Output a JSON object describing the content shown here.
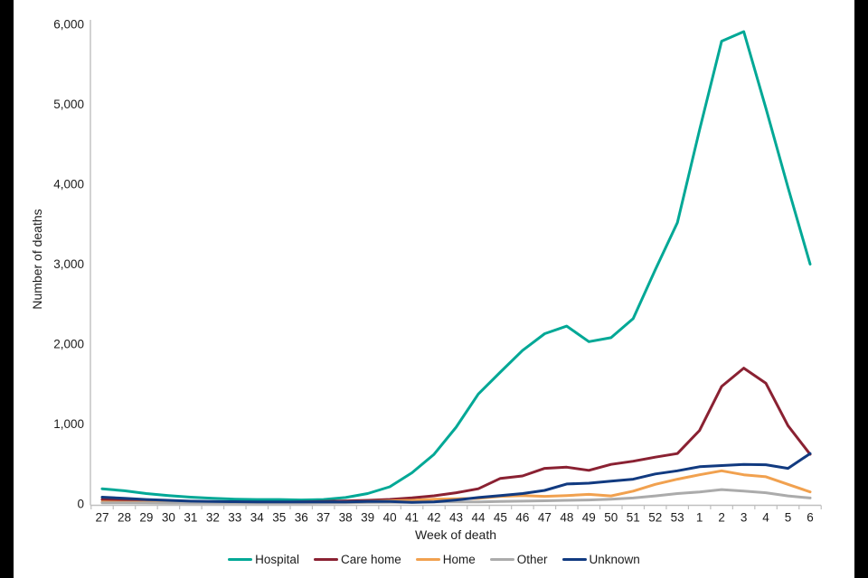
{
  "frame": {
    "left_bar_color": "#000000",
    "right_bar_color": "#000000",
    "background_color": "#ffffff"
  },
  "axis": {
    "line_color": "#bfbfbf",
    "text_color": "#1c1c1c"
  },
  "chart_data": {
    "type": "line",
    "title": "",
    "xlabel": "Week of death",
    "ylabel": "Number of deaths",
    "ylim": [
      0,
      6000
    ],
    "yticks": [
      0,
      1000,
      2000,
      3000,
      4000,
      5000,
      6000
    ],
    "ytick_labels": [
      "0",
      "1,000",
      "2,000",
      "3,000",
      "4,000",
      "5,000",
      "6,000"
    ],
    "grid": false,
    "legend_position": "bottom",
    "categories": [
      "27",
      "28",
      "29",
      "30",
      "31",
      "32",
      "33",
      "34",
      "35",
      "36",
      "37",
      "38",
      "39",
      "40",
      "41",
      "42",
      "43",
      "44",
      "45",
      "46",
      "47",
      "48",
      "49",
      "50",
      "51",
      "52",
      "53",
      "1",
      "2",
      "3",
      "4",
      "5",
      "6"
    ],
    "series": [
      {
        "name": "Hospital",
        "color": "#00a896",
        "values": [
          190,
          165,
          130,
          105,
          85,
          70,
          60,
          55,
          55,
          50,
          55,
          80,
          130,
          215,
          390,
          620,
          960,
          1375,
          1650,
          1920,
          2130,
          2225,
          2030,
          2080,
          2320,
          2930,
          3520,
          4680,
          5790,
          5910,
          4950,
          3960,
          3000
        ]
      },
      {
        "name": "Care home",
        "color": "#8a2132",
        "values": [
          55,
          45,
          38,
          30,
          27,
          25,
          22,
          20,
          20,
          25,
          30,
          38,
          45,
          57,
          76,
          102,
          140,
          190,
          320,
          350,
          445,
          460,
          420,
          495,
          535,
          585,
          630,
          920,
          1470,
          1700,
          1510,
          980,
          620
        ]
      },
      {
        "name": "Home",
        "color": "#f1a14f",
        "values": [
          25,
          22,
          20,
          18,
          15,
          15,
          15,
          15,
          15,
          15,
          20,
          25,
          30,
          40,
          45,
          60,
          65,
          70,
          95,
          105,
          95,
          105,
          120,
          100,
          160,
          245,
          310,
          365,
          415,
          365,
          340,
          245,
          150
        ]
      },
      {
        "name": "Other",
        "color": "#ababab",
        "values": [
          15,
          13,
          12,
          10,
          10,
          10,
          10,
          10,
          10,
          10,
          12,
          15,
          18,
          20,
          20,
          25,
          25,
          25,
          30,
          35,
          40,
          45,
          50,
          60,
          75,
          100,
          130,
          150,
          180,
          160,
          140,
          100,
          75
        ]
      },
      {
        "name": "Unknown",
        "color": "#113a80",
        "values": [
          85,
          70,
          55,
          45,
          35,
          30,
          28,
          25,
          25,
          25,
          25,
          25,
          30,
          30,
          20,
          25,
          50,
          80,
          105,
          130,
          170,
          250,
          260,
          285,
          310,
          375,
          415,
          465,
          480,
          495,
          490,
          445,
          630
        ]
      }
    ]
  }
}
